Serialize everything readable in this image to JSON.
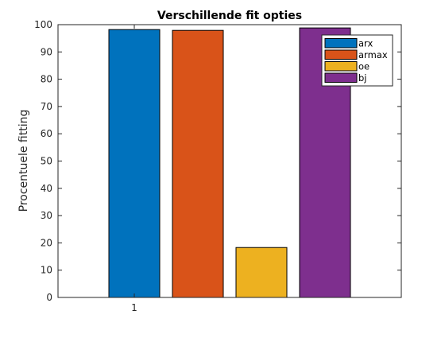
{
  "chart_data": {
    "type": "bar",
    "title": "Verschillende fit opties",
    "xlabel": "",
    "ylabel": "Procentuele fitting",
    "categories": [
      "1"
    ],
    "ylim": [
      0,
      100
    ],
    "yticks": [
      0,
      10,
      20,
      30,
      40,
      50,
      60,
      70,
      80,
      90,
      100
    ],
    "series": [
      {
        "name": "arx",
        "values": [
          98.2
        ],
        "color": "#0072BD"
      },
      {
        "name": "armax",
        "values": [
          97.9
        ],
        "color": "#D95319"
      },
      {
        "name": "oe",
        "values": [
          18.3
        ],
        "color": "#EDB120"
      },
      {
        "name": "bj",
        "values": [
          98.8
        ],
        "color": "#7E2F8E"
      }
    ],
    "legend_position": "top-right",
    "grid": false
  }
}
